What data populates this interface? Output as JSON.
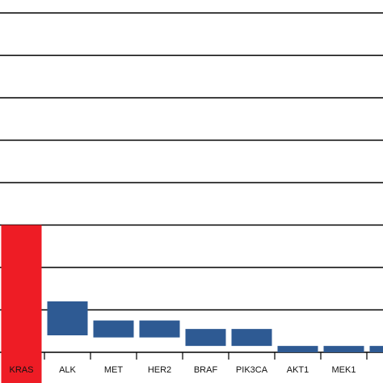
{
  "chart_data": {
    "type": "bar",
    "subtype": "floating",
    "categories": [
      "KRAS",
      "ALK",
      "MET",
      "HER2",
      "BRAF",
      "PIK3CA",
      "AKT1",
      "MEK1",
      ""
    ],
    "values": [
      [
        -1.0,
        3.0
      ],
      [
        0.4,
        1.2
      ],
      [
        0.35,
        0.75
      ],
      [
        0.35,
        0.75
      ],
      [
        0.15,
        0.55
      ],
      [
        0.15,
        0.55
      ],
      [
        0.0,
        0.15
      ],
      [
        0.0,
        0.15
      ],
      [
        0.0,
        0.15
      ]
    ],
    "series": [
      {
        "name": "",
        "color": "#ee1c25",
        "categories": [
          "KRAS"
        ]
      },
      {
        "name": "",
        "color": "#2e5a93",
        "categories": [
          "ALK",
          "MET",
          "HER2",
          "BRAF",
          "PIK3CA",
          "AKT1",
          "MEK1",
          ""
        ]
      }
    ],
    "title": "",
    "xlabel": "",
    "ylabel": "",
    "ylim": [
      0,
      8
    ],
    "grid": true,
    "legend": "none"
  }
}
